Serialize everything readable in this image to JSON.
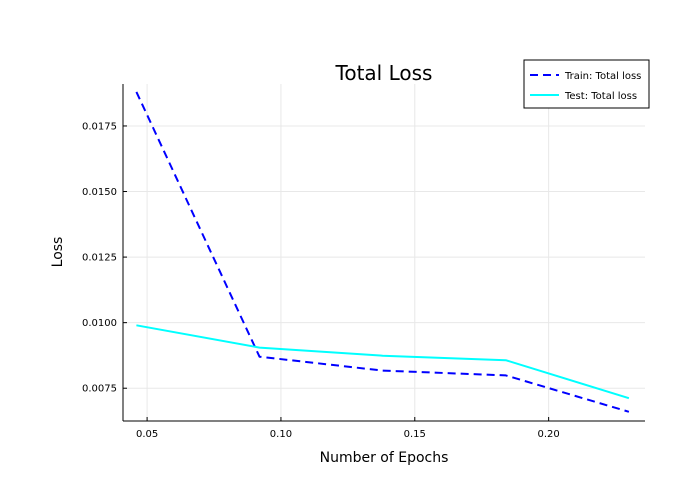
{
  "chart_data": {
    "type": "line",
    "title": "Total Loss",
    "xlabel": "Number of Epochs",
    "ylabel": "Loss",
    "xlim": [
      0.041,
      0.236
    ],
    "ylim": [
      0.00625,
      0.0191
    ],
    "xticks": [
      0.05,
      0.1,
      0.15,
      0.2
    ],
    "xtick_labels": [
      "0.05",
      "0.10",
      "0.15",
      "0.20"
    ],
    "yticks": [
      0.0075,
      0.01,
      0.0125,
      0.015,
      0.0175
    ],
    "ytick_labels": [
      "0.0075",
      "0.0100",
      "0.0125",
      "0.0150",
      "0.0175"
    ],
    "grid": true,
    "legend_position": "top-right",
    "series": [
      {
        "name": "Train: Total loss",
        "color": "#0000ff",
        "dash": "dashed",
        "x": [
          0.046,
          0.092,
          0.138,
          0.184,
          0.23
        ],
        "y": [
          0.0188,
          0.0087,
          0.00817,
          0.00799,
          0.0066
        ]
      },
      {
        "name": "Test: Total loss",
        "color": "#00ffff",
        "dash": "solid",
        "x": [
          0.046,
          0.092,
          0.138,
          0.184,
          0.23
        ],
        "y": [
          0.0099,
          0.00905,
          0.00874,
          0.00857,
          0.00712
        ]
      }
    ]
  }
}
